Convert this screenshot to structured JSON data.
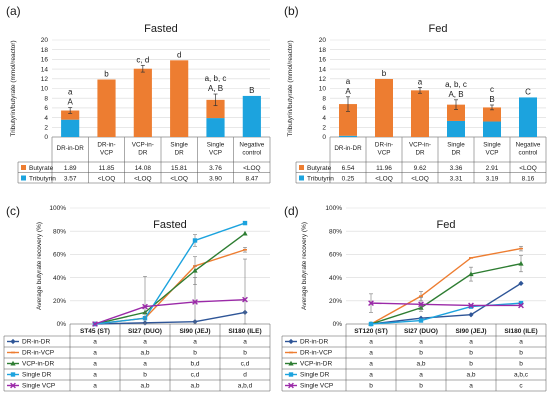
{
  "colors": {
    "butyrate": "#ED7D31",
    "tributyrin": "#1CA3DE",
    "series": [
      "#2E5597",
      "#ED7D31",
      "#2E7D32",
      "#1CA3DE",
      "#9B2AA8"
    ],
    "grid": "#d9d9d9",
    "axis": "#888888",
    "text": "#1a1a1a"
  },
  "chart_data": [
    {
      "panel_label": "(a)",
      "type": "bar",
      "title": "Fasted",
      "ylabel": "Tributyrin/butyrate (mmol/reactor)",
      "ylim": [
        0,
        20
      ],
      "yticks": [
        "0",
        "2",
        "4",
        "6",
        "8",
        "10",
        "12",
        "14",
        "16",
        "18",
        "20"
      ],
      "categories": [
        "DR-in-DR",
        "DR-in-VCP",
        "VCP-in-DR",
        "Single DR",
        "Single VCP",
        "Negative control"
      ],
      "tick_labels": [
        [
          "DR-in-DR"
        ],
        [
          "DR-in-",
          "VCP"
        ],
        [
          "VCP-in-",
          "DR"
        ],
        [
          "Single",
          "DR"
        ],
        [
          "Single",
          "VCP"
        ],
        [
          "Negative",
          "control"
        ]
      ],
      "stacked": true,
      "series": [
        {
          "name": "Tributyrin",
          "values": [
            3.57,
            0,
            0,
            0,
            3.9,
            8.47
          ],
          "table": [
            "3.57",
            "<LOQ",
            "<LOQ",
            "<LOQ",
            "3.90",
            "8.47"
          ]
        },
        {
          "name": "Butyrate",
          "values": [
            1.89,
            11.85,
            14.08,
            15.81,
            3.76,
            0
          ],
          "table": [
            "1.89",
            "11.85",
            "14.08",
            "15.81",
            "3.76",
            "<LOQ"
          ]
        }
      ],
      "errors": [
        0.6,
        0,
        0.7,
        0,
        1.2,
        0
      ],
      "letters_lower": [
        "a",
        "b",
        "c, d",
        "d",
        "a, b, c",
        ""
      ],
      "letters_upper": [
        "A",
        "",
        "",
        "",
        "A, B",
        "B"
      ]
    },
    {
      "panel_label": "(b)",
      "type": "bar",
      "title": "Fed",
      "ylabel": "Tributyrin/butyrate (mmol/reactor)",
      "ylim": [
        0,
        20
      ],
      "yticks": [
        "0",
        "2",
        "4",
        "6",
        "8",
        "10",
        "12",
        "14",
        "16",
        "18",
        "20"
      ],
      "categories": [
        "DR-in-DR",
        "DR-in-VCP",
        "VCP-in-DR",
        "Single DR",
        "Single VCP",
        "Negative control"
      ],
      "tick_labels": [
        [
          "DR-in-DR"
        ],
        [
          "DR-in-",
          "VCP"
        ],
        [
          "VCP-in-",
          "DR"
        ],
        [
          "Single",
          "DR"
        ],
        [
          "Single",
          "VCP"
        ],
        [
          "Negative",
          "control"
        ]
      ],
      "stacked": true,
      "series": [
        {
          "name": "Tributyrin",
          "values": [
            0.25,
            0,
            0,
            3.31,
            3.19,
            8.16
          ],
          "table": [
            "0.25",
            "<LOQ",
            "<LOQ",
            "3.31",
            "3.19",
            "8.16"
          ]
        },
        {
          "name": "Butyrate",
          "values": [
            6.54,
            11.96,
            9.62,
            3.36,
            2.91,
            0
          ],
          "table": [
            "6.54",
            "11.96",
            "9.62",
            "3.36",
            "2.91",
            "<LOQ"
          ]
        }
      ],
      "errors": [
        1.5,
        0,
        0.6,
        1.0,
        0.5,
        0
      ],
      "letters_lower": [
        "a",
        "b",
        "a",
        "a, b, c",
        "c",
        ""
      ],
      "letters_upper": [
        "A",
        "",
        "",
        "A, B",
        "B",
        "C"
      ]
    },
    {
      "panel_label": "(c)",
      "type": "line",
      "title": "Fasted",
      "ylabel": "Average butyrate recovery (%)",
      "ylim": [
        0,
        100
      ],
      "yticks": [
        "0%",
        "20%",
        "40%",
        "60%",
        "80%",
        "100%"
      ],
      "x": [
        "ST45 (ST)",
        "SI27 (DUO)",
        "SI90 (JEJ)",
        "SI180 (ILE)"
      ],
      "series": [
        {
          "name": "DR-in-DR",
          "values": [
            0,
            1,
            2,
            10
          ],
          "errors": [
            0,
            0,
            0,
            0
          ],
          "letters": [
            "a",
            "a",
            "a",
            "a"
          ]
        },
        {
          "name": "DR-in-VCP",
          "values": [
            0,
            5,
            50,
            64
          ],
          "errors": [
            0,
            0,
            0,
            2
          ],
          "letters": [
            "a",
            "a,b",
            "b",
            "b"
          ]
        },
        {
          "name": "VCP-in-DR",
          "values": [
            0,
            10,
            46,
            78
          ],
          "errors": [
            0,
            0,
            12,
            0
          ],
          "letters": [
            "a",
            "a",
            "b,d",
            "c,d"
          ]
        },
        {
          "name": "Single DR",
          "values": [
            0,
            5,
            72,
            87
          ],
          "errors": [
            0,
            0,
            5,
            0
          ],
          "letters": [
            "a",
            "b",
            "c,d",
            "d"
          ]
        },
        {
          "name": "Single VCP",
          "values": [
            0,
            15,
            19,
            21
          ],
          "errors": [
            0,
            26,
            21,
            35
          ],
          "letters": [
            "a",
            "a,b",
            "a,b",
            "a,b,d"
          ]
        }
      ]
    },
    {
      "panel_label": "(d)",
      "type": "line",
      "title": "Fed",
      "ylabel": "Average butyrate recovery (%)",
      "ylim": [
        0,
        100
      ],
      "yticks": [
        "0%",
        "20%",
        "40%",
        "60%",
        "80%",
        "100%"
      ],
      "x": [
        "ST120 (ST)",
        "SI27 (DUO)",
        "SI90 (JEJ)",
        "SI180 (ILE)"
      ],
      "series": [
        {
          "name": "DR-in-DR",
          "values": [
            0,
            5,
            8,
            35
          ],
          "errors": [
            0,
            0,
            0,
            0
          ],
          "letters": [
            "a",
            "a",
            "a",
            "a"
          ]
        },
        {
          "name": "DR-in-VCP",
          "values": [
            0,
            24,
            57,
            65
          ],
          "errors": [
            0,
            4,
            0,
            2
          ],
          "letters": [
            "a",
            "b",
            "b",
            "b"
          ]
        },
        {
          "name": "VCP-in-DR",
          "values": [
            0,
            14,
            43,
            52
          ],
          "errors": [
            0,
            0,
            6,
            7
          ],
          "letters": [
            "a",
            "a,b",
            "b",
            "b"
          ]
        },
        {
          "name": "Single DR",
          "values": [
            0,
            3,
            15,
            18
          ],
          "errors": [
            0,
            0,
            0,
            0
          ],
          "letters": [
            "a",
            "a",
            "a,b",
            "a,b,c"
          ]
        },
        {
          "name": "Single VCP",
          "values": [
            18,
            17,
            16,
            16
          ],
          "errors": [
            8,
            6,
            0,
            0
          ],
          "letters": [
            "b",
            "b",
            "a",
            "c"
          ]
        }
      ]
    }
  ]
}
